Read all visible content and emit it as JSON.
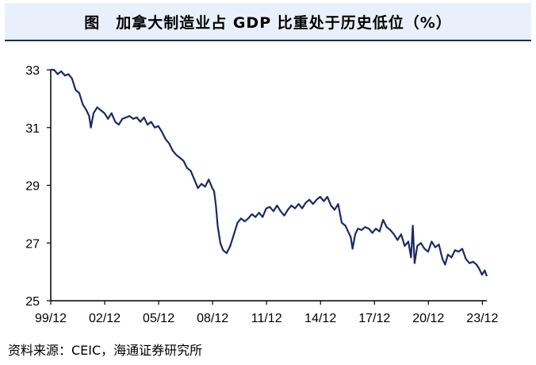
{
  "title": "图　加拿大制造业占 GDP 比重处于历史低位（%）",
  "source": "资料来源：CEIC，海通证券研究所",
  "colors": {
    "line": "#1a2a66",
    "axis": "#000000",
    "header_bg": "#eaf0fb"
  },
  "chart_data": {
    "type": "line",
    "title": "图　加拿大制造业占 GDP 比重处于历史低位（%）",
    "xlabel": "",
    "ylabel": "",
    "ylim": [
      25,
      33
    ],
    "yticks": [
      25,
      27,
      29,
      31,
      33
    ],
    "xlim": [
      1999.917,
      2024.167
    ],
    "xticks": [
      {
        "label": "99/12",
        "value": 1999.917
      },
      {
        "label": "02/12",
        "value": 2002.917
      },
      {
        "label": "05/12",
        "value": 2005.917
      },
      {
        "label": "08/12",
        "value": 2008.917
      },
      {
        "label": "11/12",
        "value": 2011.917
      },
      {
        "label": "14/12",
        "value": 2014.917
      },
      {
        "label": "17/12",
        "value": 2017.917
      },
      {
        "label": "20/12",
        "value": 2020.917
      },
      {
        "label": "23/12",
        "value": 2023.917
      }
    ],
    "grid": false,
    "legend": "none",
    "series": [
      {
        "points": [
          [
            1999.917,
            33.0
          ],
          [
            2000.1,
            33.0
          ],
          [
            2000.3,
            32.85
          ],
          [
            2000.5,
            32.95
          ],
          [
            2000.7,
            32.8
          ],
          [
            2000.9,
            32.85
          ],
          [
            2001.1,
            32.7
          ],
          [
            2001.3,
            32.3
          ],
          [
            2001.5,
            32.2
          ],
          [
            2001.7,
            31.8
          ],
          [
            2001.9,
            31.6
          ],
          [
            2002.05,
            31.4
          ],
          [
            2002.15,
            31.0
          ],
          [
            2002.3,
            31.5
          ],
          [
            2002.5,
            31.7
          ],
          [
            2002.7,
            31.6
          ],
          [
            2002.9,
            31.5
          ],
          [
            2003.1,
            31.3
          ],
          [
            2003.3,
            31.5
          ],
          [
            2003.5,
            31.2
          ],
          [
            2003.7,
            31.1
          ],
          [
            2003.9,
            31.3
          ],
          [
            2004.1,
            31.35
          ],
          [
            2004.3,
            31.4
          ],
          [
            2004.5,
            31.3
          ],
          [
            2004.7,
            31.35
          ],
          [
            2004.9,
            31.2
          ],
          [
            2005.1,
            31.35
          ],
          [
            2005.3,
            31.1
          ],
          [
            2005.5,
            31.2
          ],
          [
            2005.7,
            31.0
          ],
          [
            2005.9,
            31.05
          ],
          [
            2006.1,
            30.85
          ],
          [
            2006.3,
            30.6
          ],
          [
            2006.5,
            30.45
          ],
          [
            2006.7,
            30.2
          ],
          [
            2006.9,
            30.05
          ],
          [
            2007.1,
            29.95
          ],
          [
            2007.3,
            29.85
          ],
          [
            2007.5,
            29.6
          ],
          [
            2007.7,
            29.5
          ],
          [
            2007.9,
            29.2
          ],
          [
            2008.1,
            28.9
          ],
          [
            2008.3,
            29.05
          ],
          [
            2008.5,
            28.95
          ],
          [
            2008.7,
            29.2
          ],
          [
            2008.9,
            28.9
          ],
          [
            2009.0,
            28.8
          ],
          [
            2009.1,
            28.3
          ],
          [
            2009.2,
            27.6
          ],
          [
            2009.35,
            27.0
          ],
          [
            2009.5,
            26.75
          ],
          [
            2009.7,
            26.65
          ],
          [
            2009.9,
            26.9
          ],
          [
            2010.1,
            27.3
          ],
          [
            2010.3,
            27.7
          ],
          [
            2010.5,
            27.85
          ],
          [
            2010.7,
            27.75
          ],
          [
            2010.9,
            27.85
          ],
          [
            2011.1,
            28.0
          ],
          [
            2011.3,
            27.9
          ],
          [
            2011.5,
            28.05
          ],
          [
            2011.7,
            27.9
          ],
          [
            2011.9,
            28.2
          ],
          [
            2012.1,
            28.25
          ],
          [
            2012.3,
            28.1
          ],
          [
            2012.5,
            28.3
          ],
          [
            2012.7,
            28.1
          ],
          [
            2012.9,
            27.95
          ],
          [
            2013.1,
            28.15
          ],
          [
            2013.3,
            28.3
          ],
          [
            2013.5,
            28.2
          ],
          [
            2013.7,
            28.35
          ],
          [
            2013.9,
            28.2
          ],
          [
            2014.1,
            28.4
          ],
          [
            2014.3,
            28.5
          ],
          [
            2014.5,
            28.35
          ],
          [
            2014.7,
            28.5
          ],
          [
            2014.9,
            28.6
          ],
          [
            2015.1,
            28.45
          ],
          [
            2015.3,
            28.6
          ],
          [
            2015.5,
            28.3
          ],
          [
            2015.7,
            28.15
          ],
          [
            2015.9,
            28.35
          ],
          [
            2016.1,
            27.7
          ],
          [
            2016.3,
            27.6
          ],
          [
            2016.45,
            27.4
          ],
          [
            2016.6,
            27.2
          ],
          [
            2016.7,
            26.8
          ],
          [
            2016.85,
            27.3
          ],
          [
            2017.0,
            27.5
          ],
          [
            2017.2,
            27.45
          ],
          [
            2017.4,
            27.55
          ],
          [
            2017.6,
            27.5
          ],
          [
            2017.8,
            27.35
          ],
          [
            2018.0,
            27.5
          ],
          [
            2018.2,
            27.4
          ],
          [
            2018.4,
            27.8
          ],
          [
            2018.6,
            27.55
          ],
          [
            2018.8,
            27.45
          ],
          [
            2019.0,
            27.3
          ],
          [
            2019.2,
            27.1
          ],
          [
            2019.4,
            27.3
          ],
          [
            2019.6,
            26.9
          ],
          [
            2019.8,
            27.05
          ],
          [
            2019.95,
            26.5
          ],
          [
            2020.05,
            27.6
          ],
          [
            2020.15,
            26.3
          ],
          [
            2020.3,
            26.9
          ],
          [
            2020.5,
            27.0
          ],
          [
            2020.7,
            26.8
          ],
          [
            2020.9,
            26.7
          ],
          [
            2021.1,
            27.05
          ],
          [
            2021.3,
            26.85
          ],
          [
            2021.5,
            26.95
          ],
          [
            2021.7,
            26.45
          ],
          [
            2021.85,
            26.25
          ],
          [
            2022.0,
            26.6
          ],
          [
            2022.2,
            26.5
          ],
          [
            2022.4,
            26.75
          ],
          [
            2022.6,
            26.7
          ],
          [
            2022.8,
            26.8
          ],
          [
            2023.0,
            26.45
          ],
          [
            2023.2,
            26.3
          ],
          [
            2023.4,
            26.35
          ],
          [
            2023.6,
            26.25
          ],
          [
            2023.75,
            26.1
          ],
          [
            2023.9,
            25.9
          ],
          [
            2024.05,
            26.05
          ],
          [
            2024.167,
            25.85
          ]
        ]
      }
    ]
  }
}
